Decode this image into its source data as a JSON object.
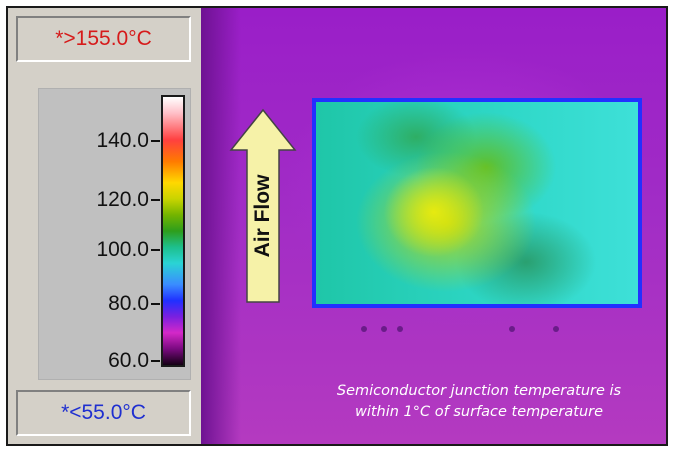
{
  "readouts": {
    "max": "*>155.0°C",
    "min": "*<55.0°C"
  },
  "scale": {
    "ticks": [
      {
        "label": "140.0",
        "value": 140
      },
      {
        "label": "120.0",
        "value": 120
      },
      {
        "label": "100.0",
        "value": 100
      },
      {
        "label": "80.0",
        "value": 80
      },
      {
        "label": "60.0",
        "value": 60
      }
    ]
  },
  "annotation": {
    "airflow_label": "Air Flow"
  },
  "caption": {
    "line1": "Semiconductor junction temperature is",
    "line2": "within 1°C of surface temperature"
  },
  "colors": {
    "max_readout": "#d61a1a",
    "min_readout": "#1f2fd0",
    "arrow_fill": "#f6f2a8",
    "background_magenta": "#a12cc6"
  }
}
